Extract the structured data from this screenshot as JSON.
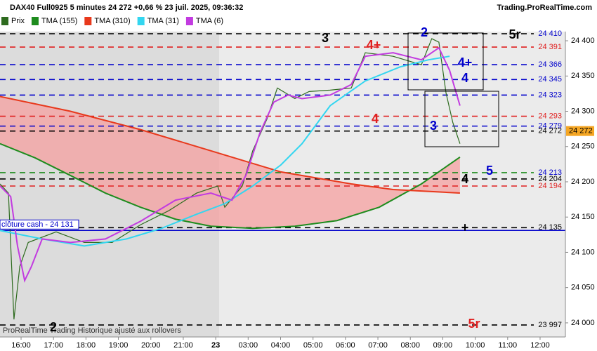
{
  "chart_data": {
    "type": "line",
    "title": "DAX40 Full0925 5 minutes 24 272 +0,66 % 23 juil. 2025, 09:36:32",
    "source": "Trading.ProRealTime.com",
    "footer": "ProRealTime Trading  Historique ajusté aux rollovers",
    "xlim": [
      -0.65,
      16.78
    ],
    "ylim": [
      23980,
      24413
    ],
    "xticks": [
      {
        "value": 0,
        "label": "16:00"
      },
      {
        "value": 1,
        "label": "17:00"
      },
      {
        "value": 2,
        "label": "18:00"
      },
      {
        "value": 3,
        "label": "19:00"
      },
      {
        "value": 4,
        "label": "20:00"
      },
      {
        "value": 5,
        "label": "21:00"
      },
      {
        "value": 6,
        "label": "23"
      },
      {
        "value": 7,
        "label": "03:00"
      },
      {
        "value": 8,
        "label": "04:00"
      },
      {
        "value": 9,
        "label": "05:00"
      },
      {
        "value": 10,
        "label": "06:00"
      },
      {
        "value": 11,
        "label": "07:00"
      },
      {
        "value": 12,
        "label": "08:00"
      },
      {
        "value": 13,
        "label": "09:00"
      },
      {
        "value": 14,
        "label": "10:00"
      },
      {
        "value": 15,
        "label": "11:00"
      },
      {
        "value": 16,
        "label": "12:00"
      }
    ],
    "yticks": [
      {
        "value": 24000,
        "label": "24 000"
      },
      {
        "value": 24050,
        "label": "24 050"
      },
      {
        "value": 24100,
        "label": "24 100"
      },
      {
        "value": 24150,
        "label": "24 150"
      },
      {
        "value": 24200,
        "label": "24 200"
      },
      {
        "value": 24250,
        "label": "24 250"
      },
      {
        "value": 24300,
        "label": "24 300"
      },
      {
        "value": 24350,
        "label": "24 350"
      },
      {
        "value": 24400,
        "label": "24 400"
      }
    ],
    "series": [
      {
        "name": "Prix",
        "color": "#2e6b1f",
        "x": [
          -0.65,
          -0.39,
          -0.22,
          -0.04,
          0.22,
          1.08,
          1.95,
          2.81,
          3.68,
          4.55,
          5.41,
          6.06,
          6.28,
          6.82,
          7.14,
          7.58,
          7.9,
          8.44,
          8.88,
          9.53,
          10.18,
          10.61,
          11.47,
          12.34,
          12.66,
          12.88,
          13.1,
          13.31,
          13.53
        ],
        "values": [
          24197,
          24184,
          24005,
          24080,
          24114,
          24129,
          24114,
          24114,
          24139,
          24159,
          24184,
          24194,
          24164,
          24194,
          24244,
          24289,
          24333,
          24318,
          24328,
          24330,
          24333,
          24383,
          24378,
          24366,
          24403,
          24398,
          24326,
          24284,
          24254
        ]
      },
      {
        "name": "TMA (155)",
        "color": "#1e8c1e",
        "x": [
          -0.65,
          0.43,
          1.52,
          2.6,
          3.68,
          4.76,
          5.85,
          7.14,
          8.44,
          9.74,
          11.04,
          12.34,
          13.53
        ],
        "values": [
          24254,
          24234,
          24209,
          24184,
          24164,
          24147,
          24137,
          24134,
          24137,
          24145,
          24164,
          24197,
          24235
        ]
      },
      {
        "name": "TMA (310)",
        "color": "#e8391c",
        "x": [
          -0.65,
          1.52,
          3.68,
          5.85,
          8.01,
          10.18,
          11.47,
          13.53
        ],
        "values": [
          24321,
          24300,
          24274,
          24244,
          24214,
          24197,
          24189,
          24184
        ]
      },
      {
        "name": "TMA (31)",
        "color": "#33d6f0",
        "x": [
          -0.65,
          0.65,
          1.95,
          3.25,
          4.33,
          5.41,
          6.28,
          7.14,
          8.01,
          8.66,
          9.53,
          10.61,
          11.69,
          12.56,
          13.21
        ],
        "values": [
          24131,
          24119,
          24109,
          24119,
          24134,
          24154,
          24169,
          24194,
          24224,
          24254,
          24308,
          24343,
          24363,
          24373,
          24378
        ]
      },
      {
        "name": "TMA (6)",
        "color": "#c23be0",
        "x": [
          -0.65,
          -0.32,
          -0.11,
          0.11,
          0.32,
          0.65,
          1.52,
          2.6,
          3.68,
          4.76,
          5.85,
          6.5,
          6.93,
          7.36,
          7.79,
          8.23,
          8.66,
          9.53,
          10.18,
          10.61,
          11.47,
          12.34,
          12.88,
          13.21,
          13.53
        ],
        "values": [
          24194,
          24179,
          24109,
          24060,
          24080,
          24119,
          24114,
          24119,
          24144,
          24174,
          24184,
          24174,
          24209,
          24269,
          24313,
          24323,
          24318,
          24323,
          24338,
          24378,
          24383,
          24373,
          24390,
          24358,
          24308
        ]
      }
    ],
    "levels": [
      {
        "value": 24410,
        "label": "24 410",
        "color": "#0000cc",
        "line_color": "#000000"
      },
      {
        "value": 24391,
        "label": "24 391",
        "color": "#e02020",
        "line_color": "#e02020"
      },
      {
        "value": 24366,
        "label": "24 366",
        "color": "#0000cc",
        "line_color": "#0000cc"
      },
      {
        "value": 24345,
        "label": "24 345",
        "color": "#0000cc",
        "line_color": "#0000cc"
      },
      {
        "value": 24323,
        "label": "24 323",
        "color": "#0000cc",
        "line_color": "#0000cc"
      },
      {
        "value": 24293,
        "label": "24 293",
        "color": "#e02020",
        "line_color": "#e02020"
      },
      {
        "value": 24279,
        "label": "24 279",
        "color": "#0000cc",
        "line_color": "#0000cc"
      },
      {
        "value": 24272,
        "label": "24 272",
        "color": "#000000",
        "line_color": "#000000"
      },
      {
        "value": 24213,
        "label": "24 213",
        "color": "#0000cc",
        "line_color": "#1e8c1e"
      },
      {
        "value": 24204,
        "label": "24 204",
        "color": "#000000",
        "line_color": "#000000"
      },
      {
        "value": 24194,
        "label": "24 194",
        "color": "#e02020",
        "line_color": "#e02020"
      },
      {
        "value": 24135,
        "label": "24 135",
        "color": "#000000",
        "line_color": "#000000"
      },
      {
        "value": 23997,
        "label": "23 997",
        "color": "#000000",
        "line_color": "#000000"
      }
    ],
    "cash_close": {
      "value": 24131,
      "label": "clôture cash -  24 131",
      "color": "#0000cc"
    },
    "last_price": {
      "value": 24272,
      "label": "24 272",
      "color": "#f5a623"
    },
    "annotations": [
      {
        "text": "3",
        "color": "#000000"
      },
      {
        "text": "4+",
        "color": "#e02020"
      },
      {
        "text": "2",
        "color": "#0000cc"
      },
      {
        "text": "5r",
        "color": "#000000"
      },
      {
        "text": "4+",
        "color": "#0000cc"
      },
      {
        "text": "4",
        "color": "#0000cc"
      },
      {
        "text": "4",
        "color": "#e02020"
      },
      {
        "text": "3",
        "color": "#0000cc"
      },
      {
        "text": "5",
        "color": "#0000cc"
      },
      {
        "text": "4",
        "color": "#000000"
      },
      {
        "text": "+",
        "color": "#000000"
      },
      {
        "text": "2",
        "color": "#000000"
      },
      {
        "text": "5r",
        "color": "#e02020"
      }
    ]
  }
}
